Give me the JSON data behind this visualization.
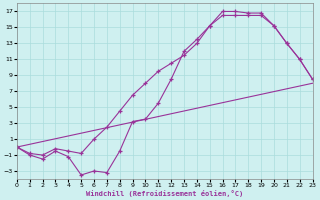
{
  "xlabel": "Windchill (Refroidissement éolien,°C)",
  "bg_color": "#cff0f0",
  "grid_color": "#aadddd",
  "line_color": "#993399",
  "xlim": [
    0,
    23
  ],
  "ylim": [
    -4,
    18
  ],
  "xticks": [
    0,
    1,
    2,
    3,
    4,
    5,
    6,
    7,
    8,
    9,
    10,
    11,
    12,
    13,
    14,
    15,
    16,
    17,
    18,
    19,
    20,
    21,
    22,
    23
  ],
  "yticks": [
    -3,
    -1,
    1,
    3,
    5,
    7,
    9,
    11,
    13,
    15,
    17
  ],
  "line1_x": [
    0,
    1,
    2,
    3,
    4,
    5,
    6,
    7,
    8,
    9,
    10,
    11,
    12,
    13,
    14,
    15,
    16,
    17,
    18,
    19,
    20,
    21,
    22,
    23
  ],
  "line1_y": [
    0,
    -1,
    -1.5,
    -0.5,
    -1.2,
    -3.5,
    -3.0,
    -3.2,
    -0.5,
    3.2,
    3.5,
    5.5,
    8.5,
    12.0,
    13.5,
    15.2,
    17.0,
    17.0,
    16.8,
    16.8,
    15.2,
    13.0,
    11.0,
    8.5
  ],
  "line2_x": [
    0,
    23
  ],
  "line2_y": [
    0,
    8.0
  ],
  "line3_x": [
    0,
    1,
    2,
    3,
    4,
    5,
    6,
    7,
    8,
    9,
    10,
    11,
    12,
    13,
    14,
    15,
    16,
    17,
    18,
    19,
    20,
    21,
    22,
    23
  ],
  "line3_y": [
    0,
    -0.8,
    -1.0,
    -0.2,
    -0.5,
    -0.8,
    1.0,
    2.5,
    4.5,
    6.5,
    8.0,
    9.5,
    10.5,
    11.5,
    13.0,
    15.2,
    16.5,
    16.5,
    16.5,
    16.5,
    15.2,
    13.0,
    11.0,
    8.5
  ]
}
